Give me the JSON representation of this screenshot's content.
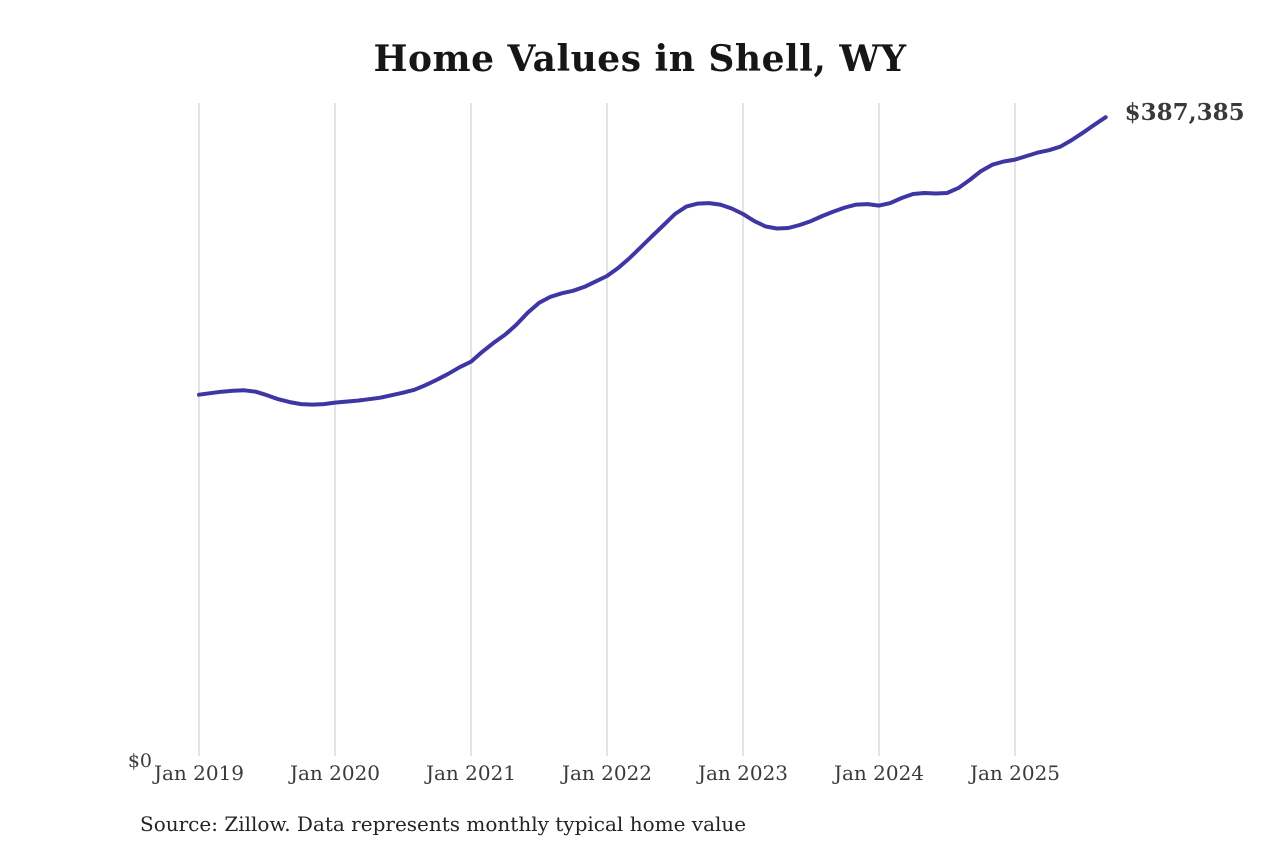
{
  "chart_data": {
    "type": "line",
    "title": "Home Values in Shell, WY",
    "source_note": "Source: Zillow. Data represents monthly typical home value",
    "end_label": "$387,385",
    "y_zero_label": "$0",
    "x_tick_labels": [
      "Jan 2019",
      "Jan 2020",
      "Jan 2021",
      "Jan 2022",
      "Jan 2023",
      "Jan 2024",
      "Jan 2025"
    ],
    "start_month": "2019-01",
    "end_month": "2025-09",
    "frequency": "monthly",
    "legend": "none",
    "grid": "vertical-yearly-gridlines",
    "ylim": [
      0,
      396000
    ],
    "line_color": "#3d36a3",
    "end_label_color": "#3a3aa0",
    "gridline_color": "#c9c9c9",
    "values": [
      219100,
      220000,
      220900,
      221500,
      221800,
      220900,
      218800,
      216400,
      214600,
      213400,
      213100,
      213400,
      214300,
      214900,
      215500,
      216400,
      217300,
      218800,
      220300,
      222100,
      224900,
      228200,
      231800,
      235800,
      239100,
      245100,
      250600,
      255400,
      261500,
      268800,
      274800,
      278400,
      280600,
      282100,
      284500,
      287800,
      291100,
      296000,
      302000,
      308700,
      315400,
      322000,
      328700,
      333200,
      335000,
      335300,
      334400,
      332000,
      328700,
      324400,
      321100,
      319900,
      320200,
      322000,
      324400,
      327500,
      330200,
      332600,
      334400,
      334700,
      333800,
      335300,
      338400,
      340800,
      341400,
      341100,
      341400,
      344400,
      349300,
      354700,
      358600,
      360500,
      361700,
      363800,
      365900,
      367400,
      369500,
      373500,
      378000,
      382800,
      387385
    ]
  }
}
